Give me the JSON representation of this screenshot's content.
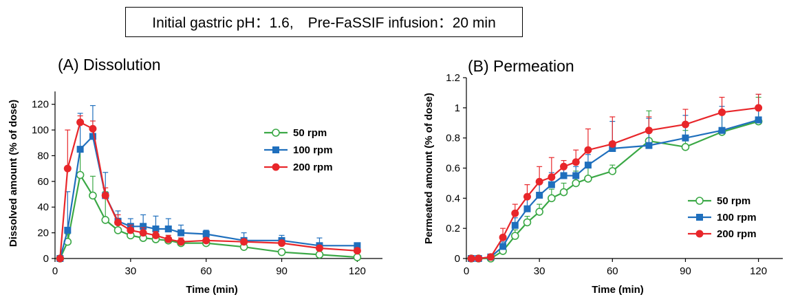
{
  "header": {
    "title": "Initial gastric pH：1.6,　Pre-FaSSIF infusion：20 min"
  },
  "colors": {
    "50rpm": "#3aa845",
    "100rpm": "#1f6fbd",
    "200rpm": "#e8262a"
  },
  "chart_data": [
    {
      "type": "line",
      "title": "(A) Dissolution",
      "xlabel": "Time (min)",
      "ylabel": "Dissolved amount (% of dose)",
      "xlim": [
        0,
        130
      ],
      "ylim": [
        0,
        130
      ],
      "xticks": [
        0,
        30,
        60,
        90,
        120
      ],
      "yticks": [
        0,
        20,
        40,
        60,
        80,
        100,
        120
      ],
      "legend_position": "right-middle",
      "series": [
        {
          "name": "50 rpm",
          "marker": "open-circle",
          "x": [
            2,
            5,
            10,
            15,
            20,
            25,
            30,
            35,
            40,
            45,
            50,
            60,
            75,
            90,
            105,
            120
          ],
          "y": [
            0,
            13,
            65,
            49,
            30,
            22,
            18,
            16,
            15,
            14,
            12,
            12,
            9,
            5,
            3,
            1
          ],
          "err": [
            0,
            6,
            22,
            15,
            22,
            5,
            4,
            5,
            4,
            4,
            4,
            4,
            3,
            2,
            2,
            1
          ]
        },
        {
          "name": "100 rpm",
          "marker": "square",
          "x": [
            2,
            5,
            10,
            15,
            20,
            25,
            30,
            35,
            40,
            45,
            50,
            60,
            75,
            90,
            105,
            120
          ],
          "y": [
            0,
            22,
            85,
            95,
            49,
            29,
            25,
            25,
            23,
            23,
            20,
            19,
            14,
            14,
            10,
            10
          ],
          "err": [
            0,
            30,
            28,
            24,
            18,
            8,
            6,
            9,
            10,
            8,
            6,
            3,
            6,
            4,
            6,
            2
          ]
        },
        {
          "name": "200 rpm",
          "marker": "filled-circle",
          "x": [
            2,
            5,
            10,
            15,
            20,
            25,
            30,
            35,
            40,
            45,
            50,
            60,
            75,
            90,
            105,
            120
          ],
          "y": [
            0,
            70,
            106,
            101,
            49,
            28,
            22,
            20,
            18,
            15,
            13,
            14,
            13,
            12,
            8,
            6
          ],
          "err": [
            0,
            30,
            5,
            6,
            6,
            6,
            4,
            4,
            3,
            3,
            3,
            2,
            2,
            2,
            2,
            2
          ]
        }
      ]
    },
    {
      "type": "line",
      "title": "(B) Permeation",
      "xlabel": "Time (min)",
      "ylabel": "Permeated amount (% of dose)",
      "xlim": [
        0,
        130
      ],
      "ylim": [
        0,
        1.2
      ],
      "xticks": [
        0,
        30,
        60,
        90,
        120
      ],
      "yticks": [
        0,
        0.2,
        0.4,
        0.6,
        0.8,
        1,
        1.2
      ],
      "legend_position": "bottom-right",
      "series": [
        {
          "name": "50 rpm",
          "marker": "open-circle",
          "x": [
            2,
            5,
            10,
            15,
            20,
            25,
            30,
            35,
            40,
            45,
            50,
            60,
            75,
            90,
            105,
            120
          ],
          "y": [
            0,
            0,
            0,
            0.05,
            0.15,
            0.24,
            0.31,
            0.4,
            0.44,
            0.5,
            0.53,
            0.58,
            0.78,
            0.74,
            0.84,
            0.91
          ],
          "err": [
            0,
            0,
            0,
            0.02,
            0.04,
            0.04,
            0.05,
            0.06,
            0.06,
            0.08,
            0.09,
            0.04,
            0.2,
            0.11,
            0.14,
            0.16
          ]
        },
        {
          "name": "100 rpm",
          "marker": "square",
          "x": [
            2,
            5,
            10,
            15,
            20,
            25,
            30,
            35,
            40,
            45,
            50,
            60,
            75,
            90,
            105,
            120
          ],
          "y": [
            0,
            0,
            0.01,
            0.08,
            0.22,
            0.33,
            0.42,
            0.49,
            0.55,
            0.55,
            0.62,
            0.73,
            0.75,
            0.8,
            0.85,
            0.92
          ],
          "err": [
            0,
            0,
            0,
            0.03,
            0.05,
            0.07,
            0.08,
            0.08,
            0.06,
            0.06,
            0.07,
            0.18,
            0.18,
            0.15,
            0.16,
            0.17
          ]
        },
        {
          "name": "200 rpm",
          "marker": "filled-circle",
          "x": [
            2,
            5,
            10,
            15,
            20,
            25,
            30,
            35,
            40,
            45,
            50,
            60,
            75,
            90,
            105,
            120
          ],
          "y": [
            0,
            0,
            0.01,
            0.14,
            0.3,
            0.41,
            0.51,
            0.54,
            0.61,
            0.64,
            0.72,
            0.76,
            0.85,
            0.89,
            0.97,
            1.0
          ],
          "err": [
            0,
            0,
            0,
            0.06,
            0.06,
            0.08,
            0.1,
            0.13,
            0.04,
            0.08,
            0.14,
            0.18,
            0.09,
            0.1,
            0.1,
            0.09
          ]
        }
      ]
    }
  ]
}
